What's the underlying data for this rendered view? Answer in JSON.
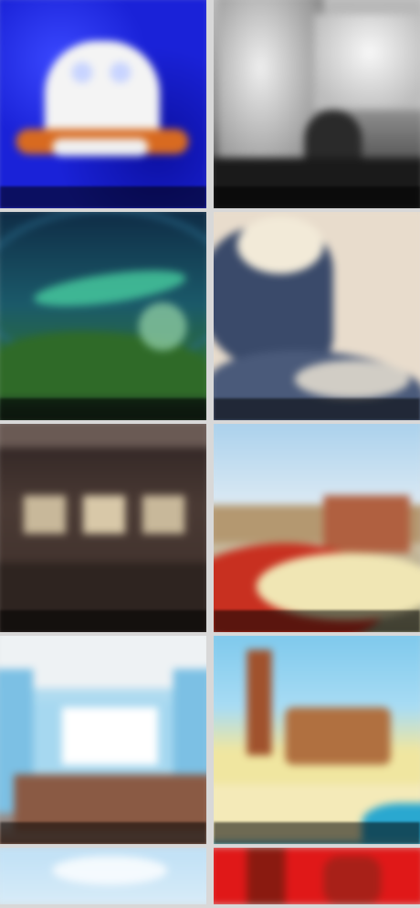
{
  "gallery": {
    "tiles": [
      {
        "id": "t1",
        "caption": "",
        "colors": {
          "bg": "#1a22d8",
          "accent": "#ffffff",
          "accent2": "#d86a20"
        }
      },
      {
        "id": "t2",
        "caption": "",
        "colors": {
          "bg": "#6a6a6a",
          "accent": "#e8e8e8",
          "accent2": "#222222"
        }
      },
      {
        "id": "t3",
        "caption": "",
        "colors": {
          "bg": "#143a52",
          "accent": "#3ba06a",
          "accent2": "#2a5a20"
        }
      },
      {
        "id": "t4",
        "caption": "",
        "colors": {
          "bg": "#e8dccc",
          "accent": "#3a4a6a",
          "accent2": "#f2ead8"
        }
      },
      {
        "id": "t5",
        "caption": "",
        "colors": {
          "bg": "#4a3a34",
          "accent": "#c8b89a",
          "accent2": "#2e2420"
        }
      },
      {
        "id": "t6",
        "caption": "",
        "colors": {
          "bg": "#a8d0ec",
          "accent": "#c83020",
          "accent2": "#f0e6b4"
        }
      },
      {
        "id": "t7",
        "caption": "",
        "colors": {
          "bg": "#a6d8f0",
          "accent": "#8a5a44",
          "accent2": "#ffffff"
        }
      },
      {
        "id": "t8",
        "caption": "",
        "colors": {
          "bg": "#7cc8ec",
          "accent": "#f0e6a0",
          "accent2": "#a0522d"
        }
      },
      {
        "id": "t9",
        "caption": "",
        "colors": {
          "bg": "#bfe0f6",
          "accent": "#ffffff",
          "accent2": "#a0c8e8"
        }
      },
      {
        "id": "t10",
        "caption": "",
        "colors": {
          "bg": "#e01818",
          "accent": "#8a1a10",
          "accent2": "#ff4040"
        }
      }
    ]
  }
}
